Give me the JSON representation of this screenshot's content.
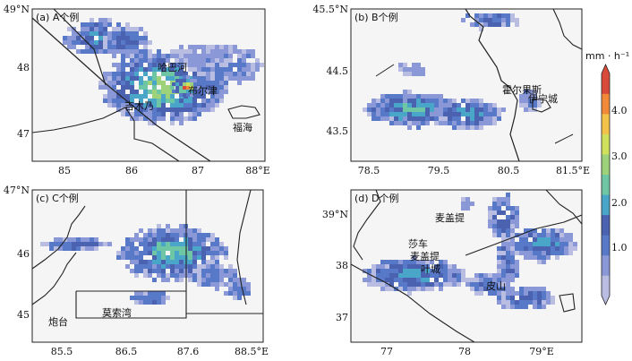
{
  "figure": {
    "colorbar": {
      "unit": "mm · h⁻¹",
      "ticks": [
        "1.0",
        "2.0",
        "3.0",
        "4.0"
      ],
      "colors": [
        "#b9bde2",
        "#8a98d8",
        "#5878c8",
        "#4a62b0",
        "#4aa6c8",
        "#6ec6a4",
        "#9ed27a",
        "#cfe05c",
        "#f2c24a",
        "#f08a3a",
        "#d84a3a"
      ]
    },
    "panels": [
      {
        "id": "a",
        "label": "(a) A个例",
        "lat_labels": [
          "49°N",
          "48",
          "47"
        ],
        "lon_labels": [
          "85",
          "86",
          "87",
          "88°E"
        ],
        "places": [
          {
            "name": "哈巴河",
            "lon": 86.35,
            "lat": 48.05
          },
          {
            "name": "布尔津",
            "lon": 86.85,
            "lat": 47.72
          },
          {
            "name": "吉木乃",
            "lon": 85.9,
            "lat": 47.45
          },
          {
            "name": "福海",
            "lon": 87.5,
            "lat": 47.13
          }
        ]
      },
      {
        "id": "b",
        "label": "(b) B个例",
        "lat_labels": [
          "45.5°N",
          "44.5",
          "43.5"
        ],
        "lon_labels": [
          "78.5",
          "79.5",
          "80.5",
          "81.5°E"
        ],
        "places": [
          {
            "name": "霍尔果斯",
            "lon": 80.45,
            "lat": 44.2
          },
          {
            "name": "伊宁城",
            "lon": 80.8,
            "lat": 43.98
          }
        ]
      },
      {
        "id": "c",
        "label": "(c) C个例",
        "lat_labels": [
          "47°N",
          "46",
          "45"
        ],
        "lon_labels": [
          "85.5",
          "86.5",
          "87.6",
          "88.5°E"
        ],
        "places": [
          {
            "name": "莫索湾",
            "lon": 86.3,
            "lat": 45.1
          },
          {
            "name": "炮台",
            "lon": 85.0,
            "lat": 44.95
          }
        ]
      },
      {
        "id": "d",
        "label": "(d) D个例",
        "lat_labels": [
          "39°N",
          "38",
          "37"
        ],
        "lon_labels": [
          "77",
          "78",
          "79°E"
        ],
        "places": [
          {
            "name": "麦盖提",
            "lon": 77.6,
            "lat": 39.0
          },
          {
            "name": "莎车",
            "lon": 77.25,
            "lat": 38.25
          },
          {
            "name": "麦盖提",
            "lon": 77.2,
            "lat": 38.05
          },
          {
            "name": "叶城",
            "lon": 77.5,
            "lat": 37.85
          },
          {
            "name": "皮山",
            "lon": 78.3,
            "lat": 37.6
          }
        ]
      }
    ]
  }
}
